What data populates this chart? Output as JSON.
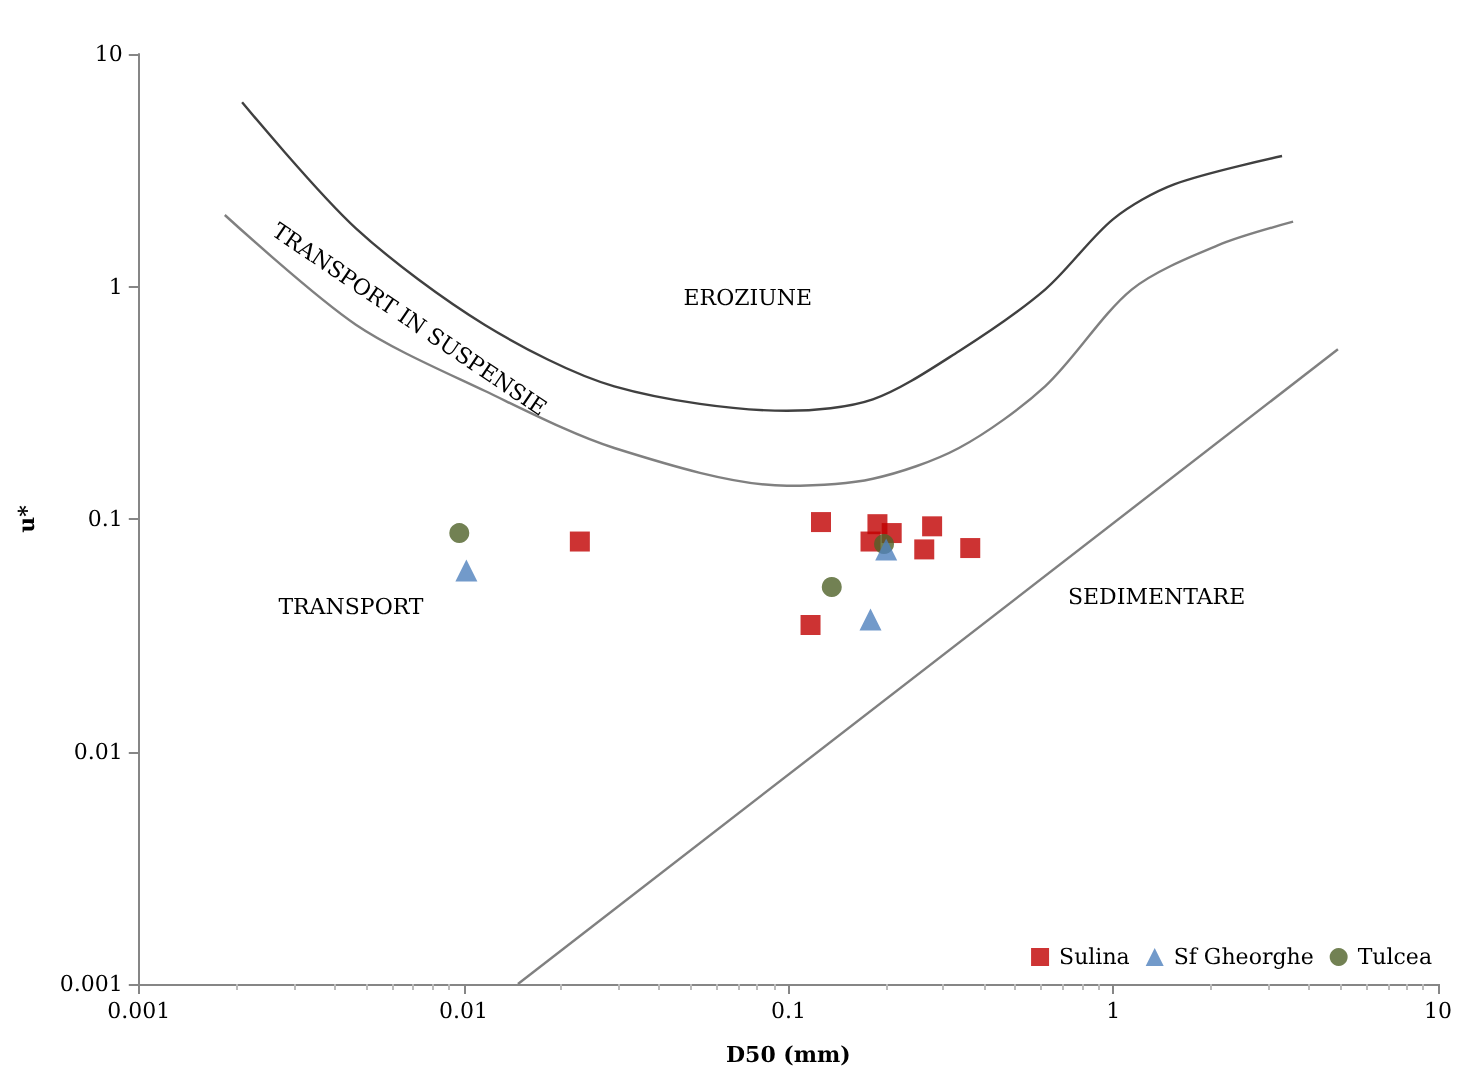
{
  "chart_data": {
    "type": "scatter",
    "xlabel": "D50 (mm)",
    "ylabel": "u*",
    "log": "xy",
    "grid": false,
    "legend": "bottom right",
    "xlim": [
      0.001,
      10
    ],
    "ylim": [
      0.001,
      10
    ],
    "xticks": [
      0.001,
      0.01,
      0.1,
      1,
      10
    ],
    "yticks": [
      0.001,
      0.01,
      0.1,
      1,
      10
    ],
    "series": [
      {
        "name": "Sulina",
        "color": "#c00000",
        "marker": "square",
        "x": [
          0.0228,
          0.126,
          0.188,
          0.208,
          0.179,
          0.277,
          0.262,
          0.363,
          0.117
        ],
        "values": [
          0.08,
          0.097,
          0.095,
          0.087,
          0.08,
          0.093,
          0.074,
          0.075,
          0.035
        ]
      },
      {
        "name": "Sf Gheorghe",
        "color": "#4f81bd",
        "marker": "triangle",
        "x": [
          0.0102,
          0.179,
          0.2
        ],
        "values": [
          0.06,
          0.037,
          0.074
        ]
      },
      {
        "name": "Tulcea",
        "color": "#4f6228",
        "marker": "circle",
        "x": [
          0.0097,
          0.136,
          0.197
        ],
        "values": [
          0.087,
          0.051,
          0.078
        ]
      },
      {
        "type": "line",
        "color": "#404040",
        "marker": "none",
        "x": [
          0.00208,
          0.00466,
          0.0116,
          0.0291,
          0.099,
          0.182,
          0.335,
          0.617,
          1.0,
          1.54,
          3.31
        ],
        "values": [
          6.2,
          1.78,
          0.685,
          0.372,
          0.292,
          0.327,
          0.527,
          0.97,
          1.95,
          2.75,
          3.64
        ]
      },
      {
        "type": "line",
        "color": "#808080",
        "marker": "none",
        "x": [
          0.00184,
          0.00466,
          0.0116,
          0.0291,
          0.099,
          0.182,
          0.335,
          0.617,
          1.14,
          2.09,
          3.58
        ],
        "values": [
          2.03,
          0.685,
          0.356,
          0.202,
          0.139,
          0.149,
          0.202,
          0.372,
          0.97,
          1.5,
          1.9
        ]
      },
      {
        "type": "line",
        "color": "#808080",
        "marker": "none",
        "x": [
          0.0147,
          4.92
        ],
        "values": [
          0.001,
          0.537
        ]
      }
    ],
    "annotations": [
      "EROZIUNE",
      "TRANSPORT IN SUSPENSIE",
      "TRANSPORT",
      "SEDIMENTARE"
    ]
  }
}
